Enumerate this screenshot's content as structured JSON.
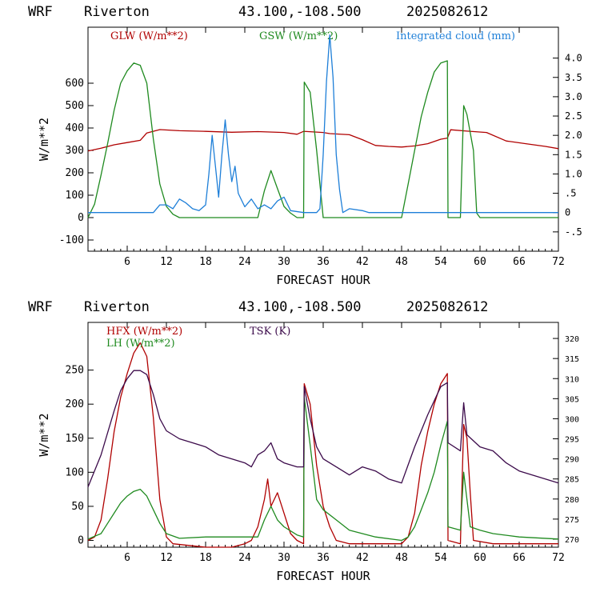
{
  "colors": {
    "red": "#b00000",
    "green": "#1f8a1f",
    "blue": "#1e7fd8",
    "purple": "#3b0a4a",
    "axis": "#000000"
  },
  "chart_data": [
    {
      "type": "line",
      "header": {
        "model": "WRF",
        "site": "Riverton",
        "coords": "43.100,-108.500",
        "init": "2025082612"
      },
      "xlabel": "FORECAST HOUR",
      "ylabel": "W/m**2",
      "xlim": [
        0,
        72
      ],
      "ylim": [
        -150,
        850
      ],
      "y2lim": [
        -1.0,
        4.8
      ],
      "x_ticks": [
        "6",
        "12",
        "18",
        "24",
        "30",
        "36",
        "42",
        "48",
        "54",
        "60",
        "66",
        "72"
      ],
      "y_ticks": [
        "-100",
        "0",
        "100",
        "200",
        "300",
        "400",
        "500",
        "600"
      ],
      "y2_ticks": [
        "-.5",
        "0",
        ".5",
        "1.0",
        "1.5",
        "2.0",
        "2.5",
        "3.0",
        "3.5",
        "4.0"
      ],
      "series": [
        {
          "name": "GLW (W/m**2)",
          "color": "red",
          "axis": "left",
          "points": [
            [
              0,
              297
            ],
            [
              2,
              310
            ],
            [
              4,
              325
            ],
            [
              6,
              335
            ],
            [
              8,
              345
            ],
            [
              9,
              378
            ],
            [
              11,
              393
            ],
            [
              14,
              388
            ],
            [
              18,
              385
            ],
            [
              22,
              381
            ],
            [
              26,
              384
            ],
            [
              30,
              380
            ],
            [
              32,
              372
            ],
            [
              33,
              385
            ],
            [
              36,
              380
            ],
            [
              37,
              375
            ],
            [
              40,
              370
            ],
            [
              42,
              348
            ],
            [
              44,
              322
            ],
            [
              46,
              318
            ],
            [
              48,
              315
            ],
            [
              50,
              320
            ],
            [
              52,
              330
            ],
            [
              54,
              350
            ],
            [
              55,
              355
            ],
            [
              55.5,
              392
            ],
            [
              58,
              386
            ],
            [
              61,
              380
            ],
            [
              64,
              342
            ],
            [
              67,
              330
            ],
            [
              70,
              318
            ],
            [
              72,
              308
            ]
          ]
        },
        {
          "name": "GSW (W/m**2)",
          "color": "green",
          "axis": "left",
          "points": [
            [
              0,
              0
            ],
            [
              1,
              60
            ],
            [
              2,
              190
            ],
            [
              3,
              330
            ],
            [
              4,
              480
            ],
            [
              5,
              600
            ],
            [
              6,
              655
            ],
            [
              7,
              690
            ],
            [
              8,
              680
            ],
            [
              9,
              600
            ],
            [
              10,
              350
            ],
            [
              11,
              150
            ],
            [
              12,
              50
            ],
            [
              13,
              15
            ],
            [
              14,
              0
            ],
            [
              26,
              0
            ],
            [
              27,
              120
            ],
            [
              28,
              210
            ],
            [
              29,
              130
            ],
            [
              30,
              50
            ],
            [
              31,
              20
            ],
            [
              32,
              0
            ],
            [
              33,
              0
            ],
            [
              33.1,
              605
            ],
            [
              34,
              560
            ],
            [
              35,
              300
            ],
            [
              35.5,
              150
            ],
            [
              36,
              0
            ],
            [
              48,
              0
            ],
            [
              49,
              150
            ],
            [
              50,
              300
            ],
            [
              51,
              450
            ],
            [
              52,
              560
            ],
            [
              53,
              650
            ],
            [
              54,
              690
            ],
            [
              55,
              700
            ],
            [
              55.1,
              0
            ],
            [
              57,
              0
            ],
            [
              57.5,
              500
            ],
            [
              58,
              460
            ],
            [
              59,
              300
            ],
            [
              59.5,
              20
            ],
            [
              60,
              0
            ],
            [
              72,
              0
            ]
          ]
        },
        {
          "name": "Integrated cloud (mm)",
          "color": "blue",
          "axis": "right",
          "points": [
            [
              0,
              0
            ],
            [
              10,
              0
            ],
            [
              11,
              0.2
            ],
            [
              12,
              0.2
            ],
            [
              13,
              0.1
            ],
            [
              14,
              0.35
            ],
            [
              15,
              0.25
            ],
            [
              16,
              0.1
            ],
            [
              17,
              0.05
            ],
            [
              18,
              0.2
            ],
            [
              18.5,
              1.0
            ],
            [
              19,
              2.0
            ],
            [
              19.5,
              1.2
            ],
            [
              20,
              0.4
            ],
            [
              20.5,
              1.5
            ],
            [
              21,
              2.4
            ],
            [
              21.5,
              1.5
            ],
            [
              22,
              0.8
            ],
            [
              22.5,
              1.2
            ],
            [
              23,
              0.5
            ],
            [
              24,
              0.15
            ],
            [
              25,
              0.35
            ],
            [
              26,
              0.1
            ],
            [
              27,
              0.2
            ],
            [
              28,
              0.1
            ],
            [
              29,
              0.3
            ],
            [
              30,
              0.4
            ],
            [
              31,
              0.05
            ],
            [
              33,
              0
            ],
            [
              35,
              0
            ],
            [
              35.5,
              0.1
            ],
            [
              36,
              1.5
            ],
            [
              36.5,
              3.4
            ],
            [
              37,
              4.6
            ],
            [
              37.5,
              3.5
            ],
            [
              38,
              1.5
            ],
            [
              38.5,
              0.6
            ],
            [
              39,
              0
            ],
            [
              40,
              0.1
            ],
            [
              42,
              0.05
            ],
            [
              43,
              0
            ],
            [
              72,
              0
            ]
          ]
        }
      ]
    },
    {
      "type": "line",
      "header": {
        "model": "WRF",
        "site": "Riverton",
        "coords": "43.100,-108.500",
        "init": "2025082612"
      },
      "xlabel": "FORECAST HOUR",
      "ylabel": "W/m**2",
      "xlim": [
        0,
        72
      ],
      "ylim": [
        -10,
        320
      ],
      "y2lim": [
        268,
        324
      ],
      "x_ticks": [
        "6",
        "12",
        "18",
        "24",
        "30",
        "36",
        "42",
        "48",
        "54",
        "60",
        "66",
        "72"
      ],
      "y_ticks": [
        "0",
        "50",
        "100",
        "150",
        "200",
        "250"
      ],
      "y2_ticks": [
        "270",
        "275",
        "280",
        "285",
        "290",
        "295",
        "300",
        "305",
        "310",
        "315",
        "320"
      ],
      "series": [
        {
          "name": "HFX (W/m**2)",
          "color": "red",
          "axis": "left",
          "points": [
            [
              0,
              0
            ],
            [
              1,
              5
            ],
            [
              2,
              30
            ],
            [
              3,
              90
            ],
            [
              4,
              160
            ],
            [
              5,
              210
            ],
            [
              6,
              245
            ],
            [
              7,
              275
            ],
            [
              8,
              290
            ],
            [
              9,
              270
            ],
            [
              10,
              180
            ],
            [
              11,
              60
            ],
            [
              12,
              5
            ],
            [
              13,
              -5
            ],
            [
              18,
              -10
            ],
            [
              22,
              -10
            ],
            [
              24,
              -5
            ],
            [
              25,
              0
            ],
            [
              26,
              20
            ],
            [
              27,
              60
            ],
            [
              27.5,
              90
            ],
            [
              28,
              50
            ],
            [
              29,
              70
            ],
            [
              30,
              40
            ],
            [
              31,
              10
            ],
            [
              32,
              0
            ],
            [
              33,
              -5
            ],
            [
              33.1,
              230
            ],
            [
              34,
              200
            ],
            [
              35,
              110
            ],
            [
              36,
              50
            ],
            [
              37,
              20
            ],
            [
              38,
              0
            ],
            [
              40,
              -5
            ],
            [
              45,
              -5
            ],
            [
              48,
              -5
            ],
            [
              49,
              5
            ],
            [
              50,
              40
            ],
            [
              51,
              110
            ],
            [
              52,
              160
            ],
            [
              53,
              200
            ],
            [
              54,
              230
            ],
            [
              55,
              245
            ],
            [
              55.1,
              0
            ],
            [
              57,
              -5
            ],
            [
              57.5,
              170
            ],
            [
              58,
              150
            ],
            [
              58.5,
              70
            ],
            [
              59,
              0
            ],
            [
              62,
              -5
            ],
            [
              72,
              -5
            ]
          ]
        },
        {
          "name": "LH (W/m**2)",
          "color": "green",
          "axis": "left",
          "points": [
            [
              0,
              2
            ],
            [
              2,
              10
            ],
            [
              3,
              25
            ],
            [
              4,
              40
            ],
            [
              5,
              55
            ],
            [
              6,
              65
            ],
            [
              7,
              72
            ],
            [
              8,
              75
            ],
            [
              9,
              65
            ],
            [
              10,
              45
            ],
            [
              11,
              25
            ],
            [
              12,
              10
            ],
            [
              14,
              3
            ],
            [
              18,
              5
            ],
            [
              26,
              5
            ],
            [
              27,
              30
            ],
            [
              28,
              50
            ],
            [
              29,
              30
            ],
            [
              30,
              20
            ],
            [
              32,
              8
            ],
            [
              33,
              5
            ],
            [
              33.1,
              210
            ],
            [
              34,
              140
            ],
            [
              35,
              60
            ],
            [
              36,
              45
            ],
            [
              38,
              30
            ],
            [
              40,
              15
            ],
            [
              44,
              5
            ],
            [
              48,
              0
            ],
            [
              49,
              5
            ],
            [
              50,
              20
            ],
            [
              52,
              70
            ],
            [
              53,
              100
            ],
            [
              54,
              140
            ],
            [
              55,
              175
            ],
            [
              55.1,
              20
            ],
            [
              57,
              15
            ],
            [
              57.5,
              100
            ],
            [
              58,
              60
            ],
            [
              58.5,
              20
            ],
            [
              60,
              15
            ],
            [
              62,
              10
            ],
            [
              66,
              5
            ],
            [
              72,
              2
            ]
          ]
        },
        {
          "name": "TSK (K)",
          "color": "purple",
          "axis": "right",
          "points": [
            [
              0,
              283
            ],
            [
              2,
              291
            ],
            [
              4,
              302
            ],
            [
              5,
              307
            ],
            [
              6,
              310
            ],
            [
              7,
              312
            ],
            [
              8,
              312
            ],
            [
              9,
              311
            ],
            [
              10,
              306
            ],
            [
              11,
              300
            ],
            [
              12,
              297
            ],
            [
              14,
              295
            ],
            [
              16,
              294
            ],
            [
              18,
              293
            ],
            [
              20,
              291
            ],
            [
              22,
              290
            ],
            [
              24,
              289
            ],
            [
              25,
              288
            ],
            [
              26,
              291
            ],
            [
              27,
              292
            ],
            [
              28,
              294
            ],
            [
              29,
              290
            ],
            [
              30,
              289
            ],
            [
              32,
              288
            ],
            [
              33,
              288
            ],
            [
              33.1,
              308
            ],
            [
              34,
              300
            ],
            [
              35,
              293
            ],
            [
              36,
              290
            ],
            [
              38,
              288
            ],
            [
              40,
              286
            ],
            [
              42,
              288
            ],
            [
              44,
              287
            ],
            [
              46,
              285
            ],
            [
              48,
              284
            ],
            [
              50,
              293
            ],
            [
              52,
              301
            ],
            [
              54,
              308
            ],
            [
              55,
              309
            ],
            [
              55.1,
              294
            ],
            [
              57,
              292
            ],
            [
              57.5,
              304
            ],
            [
              58,
              296
            ],
            [
              60,
              293
            ],
            [
              62,
              292
            ],
            [
              64,
              289
            ],
            [
              66,
              287
            ],
            [
              68,
              286
            ],
            [
              70,
              285
            ],
            [
              72,
              284
            ]
          ]
        }
      ]
    }
  ]
}
